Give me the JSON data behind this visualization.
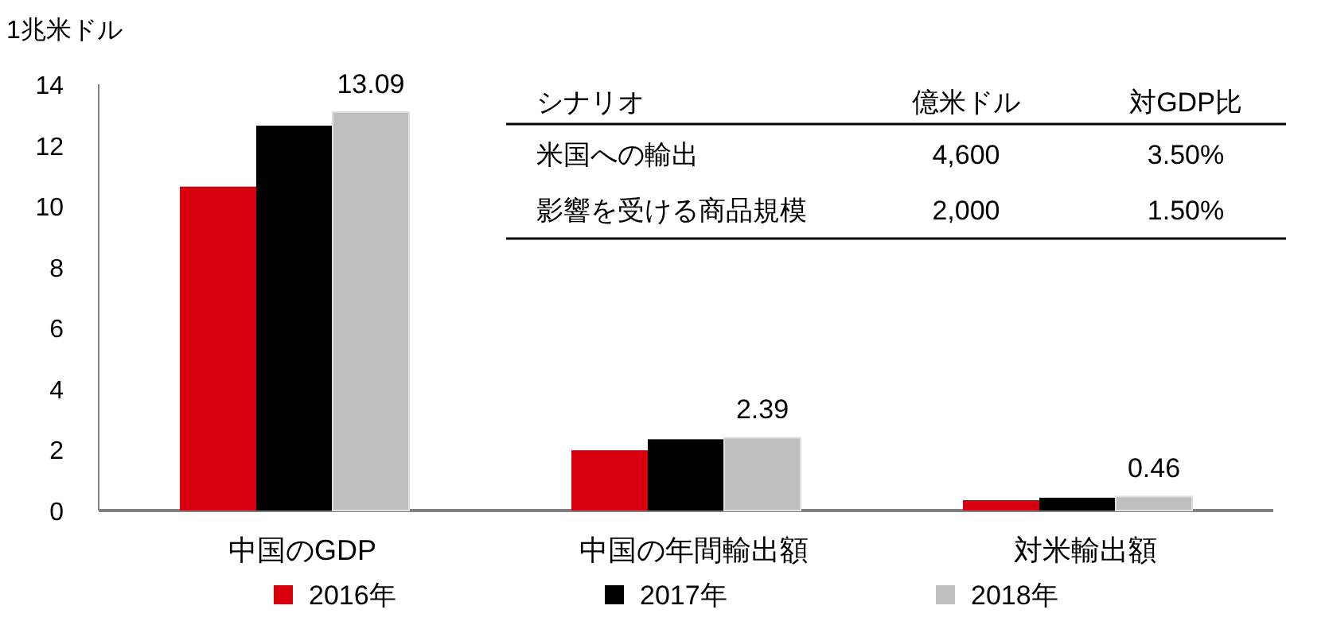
{
  "chart_data": {
    "type": "bar",
    "ylabel": "1兆米ドル",
    "categories": [
      "中国のGDP",
      "中国の年間輸出額",
      "対米輸出額"
    ],
    "series": [
      {
        "name": "2016年",
        "color": "#d9000d",
        "values": [
          10.64,
          1.98,
          0.34
        ]
      },
      {
        "name": "2017年",
        "color": "#000000",
        "values": [
          12.64,
          2.34,
          0.42
        ]
      },
      {
        "name": "2018年",
        "color": "#bfbfbf",
        "values": [
          13.09,
          2.39,
          0.46
        ],
        "value_labels": [
          "13.09",
          "2.39",
          "0.46"
        ]
      }
    ],
    "ylim": [
      0,
      14
    ],
    "yticks": [
      0,
      2,
      4,
      6,
      8,
      10,
      12,
      14
    ],
    "grid": false,
    "legend": "bottom",
    "annotations": [
      "シナリオ",
      "億米ドル",
      "対GDP比",
      "米国への輸出",
      "4,600",
      "3.50%",
      "影響を受ける商品規模",
      "2,000",
      "1.50%"
    ]
  }
}
